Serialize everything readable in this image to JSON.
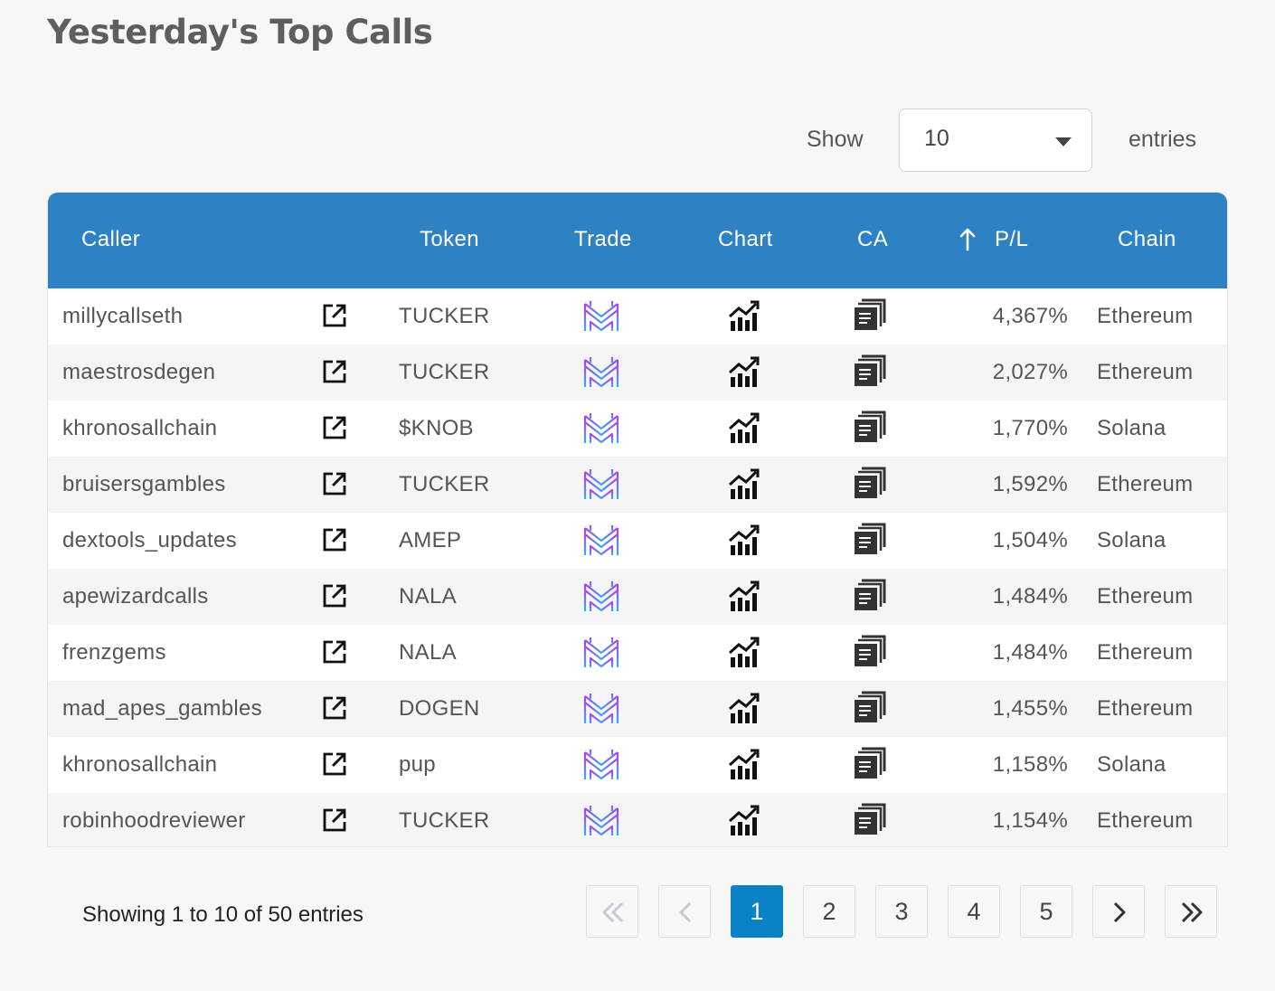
{
  "page_title": "Yesterday's Top Calls",
  "length_control": {
    "show_label": "Show",
    "value": "10",
    "entries_label": "entries"
  },
  "table": {
    "headers": {
      "caller": "Caller",
      "token": "Token",
      "trade": "Trade",
      "chart": "Chart",
      "ca": "CA",
      "pl": "P/L",
      "chain": "Chain"
    },
    "sort": {
      "column": "P/L",
      "direction": "up-arrow-icon"
    },
    "rows": [
      {
        "caller": "millycallseth",
        "token": "TUCKER",
        "pl": "4,367%",
        "chain": "Ethereum"
      },
      {
        "caller": "maestrosdegen",
        "token": "TUCKER",
        "pl": "2,027%",
        "chain": "Ethereum"
      },
      {
        "caller": "khronosallchain",
        "token": "$KNOB",
        "pl": "1,770%",
        "chain": "Solana"
      },
      {
        "caller": "bruisersgambles",
        "token": "TUCKER",
        "pl": "1,592%",
        "chain": "Ethereum"
      },
      {
        "caller": "dextools_updates",
        "token": "AMEP",
        "pl": "1,504%",
        "chain": "Solana"
      },
      {
        "caller": "apewizardcalls",
        "token": "NALA",
        "pl": "1,484%",
        "chain": "Ethereum"
      },
      {
        "caller": "frenzgems",
        "token": "NALA",
        "pl": "1,484%",
        "chain": "Ethereum"
      },
      {
        "caller": "mad_apes_gambles",
        "token": "DOGEN",
        "pl": "1,455%",
        "chain": "Ethereum"
      },
      {
        "caller": "khronosallchain",
        "token": "pup",
        "pl": "1,158%",
        "chain": "Solana"
      },
      {
        "caller": "robinhoodreviewer",
        "token": "TUCKER",
        "pl": "1,154%",
        "chain": "Ethereum"
      }
    ],
    "row_icons": {
      "link": "external-link-icon",
      "trade": "maestro-logo-icon",
      "chart": "chart-icon",
      "ca": "copy-icon"
    }
  },
  "footer": {
    "info": "Showing 1 to 10 of 50 entries",
    "pages": [
      "1",
      "2",
      "3",
      "4",
      "5"
    ],
    "current_page": "1",
    "nav_icons": {
      "first": "double-chevron-left-icon",
      "prev": "chevron-left-icon",
      "next": "chevron-right-icon",
      "last": "double-chevron-right-icon"
    }
  },
  "colors": {
    "header_bg": "#2e82c3",
    "active_page": "#0a82c5",
    "trade_icon_top": "#b43cf0",
    "trade_icon_bottom": "#3ea8f5"
  }
}
